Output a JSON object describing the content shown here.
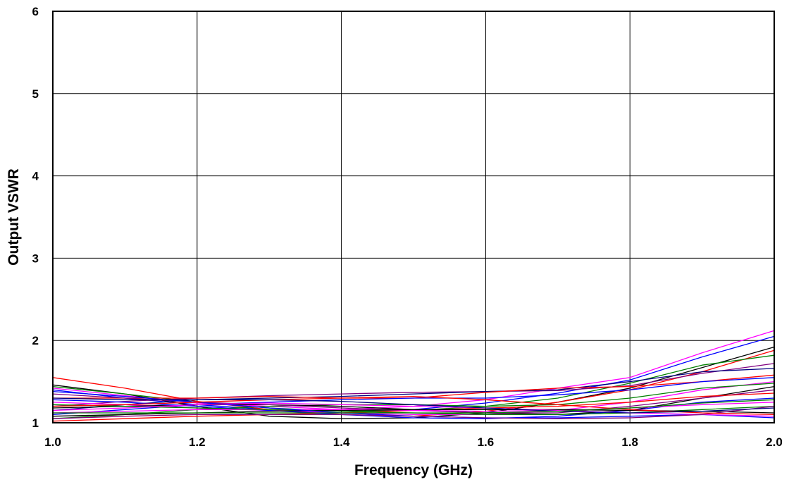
{
  "chart_data": {
    "type": "line",
    "title": "",
    "xlabel": "Frequency (GHz)",
    "ylabel": "Output VSWR",
    "xlim": [
      1.0,
      2.0
    ],
    "ylim": [
      1,
      6
    ],
    "x_ticks": [
      "1.0",
      "1.2",
      "1.4",
      "1.6",
      "1.8",
      "2.0"
    ],
    "y_ticks": [
      "1",
      "2",
      "3",
      "4",
      "5",
      "6"
    ],
    "grid": true,
    "legend": "none",
    "x": [
      1.0,
      1.1,
      1.2,
      1.3,
      1.4,
      1.5,
      1.6,
      1.7,
      1.8,
      1.9,
      2.0
    ],
    "series": [
      {
        "color": "#ff00ff",
        "values": [
          1.42,
          1.33,
          1.24,
          1.2,
          1.16,
          1.2,
          1.28,
          1.42,
          1.55,
          1.85,
          2.12
        ]
      },
      {
        "color": "#0000ff",
        "values": [
          1.4,
          1.3,
          1.22,
          1.16,
          1.12,
          1.16,
          1.24,
          1.36,
          1.52,
          1.8,
          2.05
        ]
      },
      {
        "color": "#000000",
        "values": [
          1.46,
          1.35,
          1.2,
          1.08,
          1.05,
          1.06,
          1.12,
          1.25,
          1.42,
          1.67,
          1.92
        ]
      },
      {
        "color": "#ff0000",
        "values": [
          1.55,
          1.42,
          1.26,
          1.16,
          1.1,
          1.08,
          1.14,
          1.25,
          1.4,
          1.62,
          1.88
        ]
      },
      {
        "color": "#008000",
        "values": [
          1.44,
          1.35,
          1.25,
          1.18,
          1.14,
          1.15,
          1.2,
          1.3,
          1.48,
          1.7,
          1.82
        ]
      },
      {
        "color": "#800080",
        "values": [
          1.2,
          1.26,
          1.3,
          1.33,
          1.35,
          1.37,
          1.38,
          1.39,
          1.45,
          1.6,
          1.72
        ]
      },
      {
        "color": "#000080",
        "values": [
          1.15,
          1.22,
          1.28,
          1.3,
          1.32,
          1.35,
          1.38,
          1.4,
          1.5,
          1.62,
          1.66
        ]
      },
      {
        "color": "#ff0000",
        "values": [
          1.3,
          1.3,
          1.3,
          1.32,
          1.3,
          1.3,
          1.37,
          1.42,
          1.44,
          1.5,
          1.58
        ]
      },
      {
        "color": "#0000ff",
        "values": [
          1.1,
          1.16,
          1.22,
          1.25,
          1.28,
          1.3,
          1.3,
          1.34,
          1.4,
          1.5,
          1.55
        ]
      },
      {
        "color": "#ff00ff",
        "values": [
          1.25,
          1.22,
          1.18,
          1.15,
          1.12,
          1.1,
          1.1,
          1.15,
          1.25,
          1.4,
          1.5
        ]
      },
      {
        "color": "#008000",
        "values": [
          1.05,
          1.1,
          1.16,
          1.2,
          1.22,
          1.22,
          1.2,
          1.22,
          1.3,
          1.42,
          1.48
        ]
      },
      {
        "color": "#000000",
        "values": [
          1.18,
          1.2,
          1.22,
          1.22,
          1.2,
          1.16,
          1.12,
          1.1,
          1.15,
          1.3,
          1.44
        ]
      },
      {
        "color": "#800080",
        "values": [
          1.35,
          1.3,
          1.25,
          1.22,
          1.18,
          1.15,
          1.12,
          1.12,
          1.2,
          1.3,
          1.4
        ]
      },
      {
        "color": "#ff0000",
        "values": [
          1.02,
          1.05,
          1.08,
          1.1,
          1.12,
          1.15,
          1.18,
          1.2,
          1.25,
          1.32,
          1.36
        ]
      },
      {
        "color": "#0000ff",
        "values": [
          1.28,
          1.25,
          1.2,
          1.15,
          1.1,
          1.06,
          1.05,
          1.08,
          1.15,
          1.25,
          1.3
        ]
      },
      {
        "color": "#ff00ff",
        "values": [
          1.12,
          1.14,
          1.16,
          1.16,
          1.16,
          1.15,
          1.14,
          1.15,
          1.18,
          1.22,
          1.25
        ]
      },
      {
        "color": "#008000",
        "values": [
          1.22,
          1.2,
          1.18,
          1.16,
          1.14,
          1.12,
          1.1,
          1.1,
          1.12,
          1.16,
          1.2
        ]
      },
      {
        "color": "#000000",
        "values": [
          1.08,
          1.1,
          1.12,
          1.14,
          1.15,
          1.16,
          1.16,
          1.16,
          1.15,
          1.14,
          1.12
        ]
      },
      {
        "color": "#0000ff",
        "values": [
          1.38,
          1.32,
          1.25,
          1.18,
          1.12,
          1.08,
          1.06,
          1.06,
          1.08,
          1.1,
          1.06
        ]
      },
      {
        "color": "#ff00ff",
        "values": [
          1.15,
          1.18,
          1.22,
          1.24,
          1.22,
          1.2,
          1.18,
          1.15,
          1.12,
          1.1,
          1.08
        ]
      },
      {
        "color": "#800080",
        "values": [
          1.05,
          1.08,
          1.1,
          1.1,
          1.1,
          1.08,
          1.06,
          1.05,
          1.06,
          1.1,
          1.2
        ]
      },
      {
        "color": "#ff0000",
        "values": [
          1.2,
          1.22,
          1.25,
          1.28,
          1.3,
          1.32,
          1.28,
          1.22,
          1.16,
          1.12,
          1.1
        ]
      },
      {
        "color": "#000080",
        "values": [
          1.3,
          1.28,
          1.28,
          1.28,
          1.26,
          1.22,
          1.18,
          1.14,
          1.12,
          1.14,
          1.18
        ]
      },
      {
        "color": "#008000",
        "values": [
          1.12,
          1.12,
          1.12,
          1.12,
          1.12,
          1.12,
          1.12,
          1.14,
          1.18,
          1.24,
          1.28
        ]
      }
    ]
  }
}
